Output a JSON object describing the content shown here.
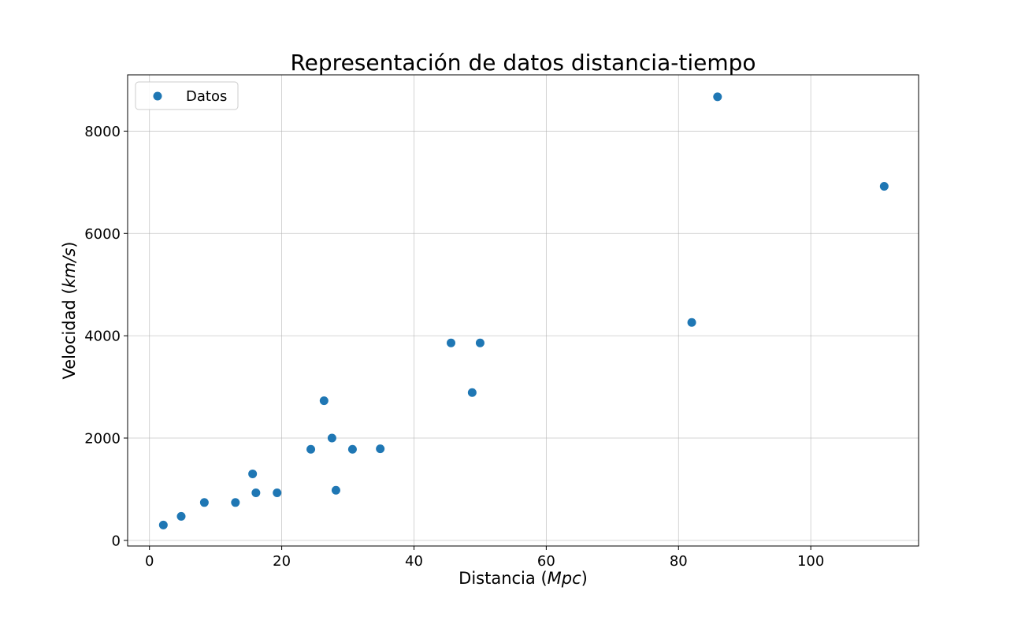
{
  "chart_data": {
    "type": "scatter",
    "title": "Representación de datos distancia-tiempo",
    "xlabel_prefix": "Distancia (",
    "xlabel_unit": "Mpc",
    "xlabel_suffix": ")",
    "ylabel_prefix": "Velocidad (",
    "ylabel_unit": "km/s",
    "ylabel_suffix": ")",
    "xlim": [
      -3.3,
      116.3
    ],
    "ylim": [
      -110,
      9100
    ],
    "xticks": [
      0,
      20,
      40,
      60,
      80,
      100
    ],
    "yticks": [
      0,
      2000,
      4000,
      6000,
      8000
    ],
    "grid": true,
    "legend_position": "top-left",
    "series": [
      {
        "name": "Datos",
        "color": "#1f77b4",
        "points": [
          {
            "x": 2.1,
            "y": 300
          },
          {
            "x": 4.8,
            "y": 470
          },
          {
            "x": 8.3,
            "y": 740
          },
          {
            "x": 13.0,
            "y": 740
          },
          {
            "x": 15.6,
            "y": 1300
          },
          {
            "x": 16.1,
            "y": 930
          },
          {
            "x": 19.3,
            "y": 930
          },
          {
            "x": 24.4,
            "y": 1780
          },
          {
            "x": 26.4,
            "y": 2730
          },
          {
            "x": 27.6,
            "y": 2000
          },
          {
            "x": 28.2,
            "y": 980
          },
          {
            "x": 30.7,
            "y": 1780
          },
          {
            "x": 34.9,
            "y": 1790
          },
          {
            "x": 45.6,
            "y": 3860
          },
          {
            "x": 48.8,
            "y": 2890
          },
          {
            "x": 50.0,
            "y": 3860
          },
          {
            "x": 82.0,
            "y": 4260
          },
          {
            "x": 85.9,
            "y": 8670
          },
          {
            "x": 111.1,
            "y": 6920
          }
        ]
      }
    ]
  }
}
